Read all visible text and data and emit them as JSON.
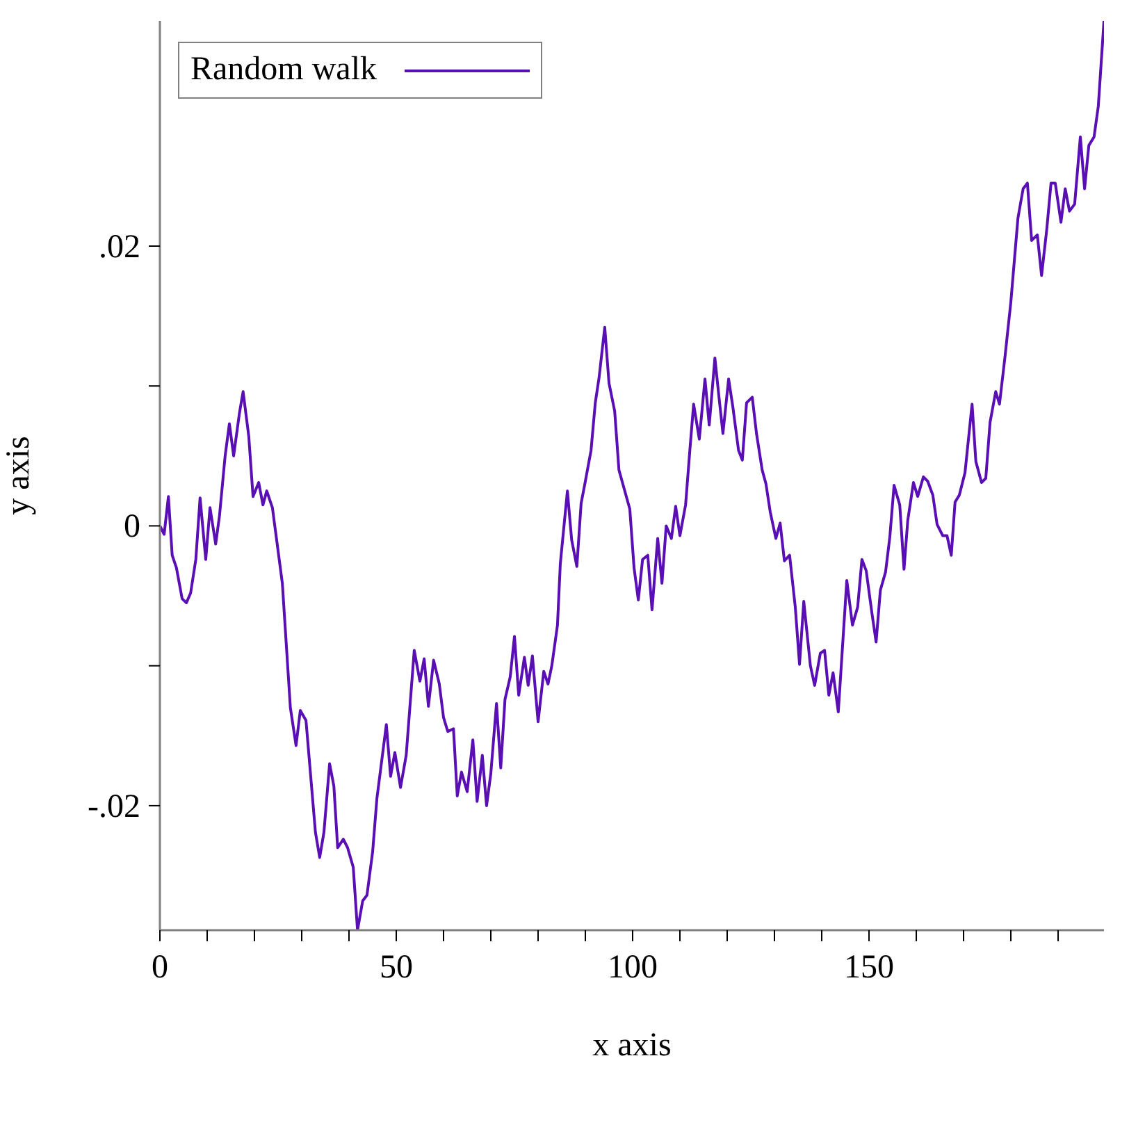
{
  "chart_data": {
    "type": "line",
    "xlabel": "x axis",
    "ylabel": "y axis",
    "xlim": [
      0,
      199.7
    ],
    "ylim": [
      -0.0289,
      0.0361
    ],
    "xticks": [
      0,
      {
        "value": 10,
        "label": null
      },
      {
        "value": 20,
        "label": null
      },
      {
        "value": 30,
        "label": null
      },
      {
        "value": 40,
        "label": null
      },
      50,
      {
        "value": 60,
        "label": null
      },
      {
        "value": 70,
        "label": null
      },
      {
        "value": 80,
        "label": null
      },
      {
        "value": 90,
        "label": null
      },
      100,
      {
        "value": 110,
        "label": null
      },
      {
        "value": 120,
        "label": null
      },
      {
        "value": 130,
        "label": null
      },
      {
        "value": 140,
        "label": null
      },
      150,
      {
        "value": 160,
        "label": null
      },
      {
        "value": 170,
        "label": null
      },
      {
        "value": 180,
        "label": null
      },
      {
        "value": 190,
        "label": null
      }
    ],
    "yticks": [
      {
        "value": -0.02,
        "label": "-.02"
      },
      {
        "value": -0.01,
        "label": null
      },
      0,
      {
        "value": 0.01,
        "label": null
      },
      {
        "value": 0.02,
        "label": ".02"
      }
    ],
    "legend": "top left",
    "marker": "none",
    "line_style": "solid",
    "series": [
      {
        "name": "Random walk",
        "color": "#5a0fb4",
        "x": [
          0,
          0.9,
          1.8,
          2.6,
          3.5,
          4.7,
          5.6,
          6.5,
          7.6,
          8.5,
          9.7,
          10.6,
          11.8,
          12.6,
          13.8,
          14.7,
          15.6,
          16.8,
          17.6,
          18.8,
          19.7,
          20.9,
          21.8,
          22.6,
          23.8,
          25.9,
          27.6,
          28.8,
          29.7,
          30.9,
          32.9,
          33.8,
          34.7,
          35.9,
          36.8,
          37.6,
          38.8,
          39.7,
          40.9,
          41.8,
          42.9,
          43.8,
          45.0,
          45.9,
          47.9,
          48.8,
          49.7,
          50.9,
          52.1,
          53.8,
          55.0,
          55.9,
          56.8,
          57.9,
          59.1,
          60.0,
          60.9,
          62.1,
          62.9,
          63.8,
          65.0,
          66.2,
          67.1,
          68.2,
          69.1,
          70.0,
          71.2,
          72.1,
          73.0,
          74.1,
          75.0,
          75.9,
          77.1,
          77.9,
          78.8,
          80.0,
          81.2,
          82.1,
          82.9,
          84.1,
          84.7,
          86.2,
          87.1,
          88.2,
          89.1,
          90.0,
          91.2,
          92.1,
          92.9,
          94.1,
          95.0,
          96.2,
          97.1,
          99.4,
          100.3,
          101.2,
          102.1,
          103.2,
          104.1,
          105.3,
          106.2,
          107.1,
          108.2,
          109.1,
          110.0,
          111.2,
          112.1,
          112.9,
          114.1,
          115.3,
          116.2,
          117.4,
          118.2,
          119.1,
          120.3,
          121.2,
          122.4,
          123.2,
          124.1,
          125.3,
          126.2,
          127.4,
          128.2,
          129.1,
          130.3,
          131.2,
          132.1,
          133.2,
          134.4,
          135.3,
          136.2,
          137.6,
          138.5,
          139.7,
          140.6,
          141.5,
          142.4,
          143.5,
          145.3,
          146.5,
          147.6,
          148.5,
          149.4,
          150.6,
          151.5,
          152.4,
          153.5,
          154.4,
          155.3,
          156.5,
          157.4,
          158.2,
          159.4,
          160.3,
          161.5,
          162.4,
          163.5,
          164.4,
          165.6,
          166.5,
          167.4,
          168.2,
          169.1,
          170.3,
          171.8,
          172.6,
          173.8,
          174.7,
          175.6,
          176.8,
          177.6,
          178.8,
          180.0,
          181.5,
          182.6,
          183.5,
          184.4,
          185.6,
          186.5,
          187.6,
          188.5,
          189.4,
          190.6,
          191.5,
          192.4,
          193.5,
          194.7,
          195.6,
          196.5,
          197.6,
          198.5,
          199.7
        ],
        "values": [
          0,
          -0.0006,
          0.0021,
          -0.0021,
          -0.003,
          -0.0052,
          -0.0055,
          -0.0048,
          -0.0024,
          0.002,
          -0.0024,
          0.0013,
          -0.0013,
          0.0007,
          0.005,
          0.0073,
          0.005,
          0.008,
          0.0096,
          0.0064,
          0.0021,
          0.0031,
          0.0015,
          0.0025,
          0.0013,
          -0.0041,
          -0.013,
          -0.0157,
          -0.0132,
          -0.0139,
          -0.0219,
          -0.0237,
          -0.0219,
          -0.017,
          -0.0186,
          -0.023,
          -0.0224,
          -0.023,
          -0.0244,
          -0.0289,
          -0.0268,
          -0.0264,
          -0.0233,
          -0.0195,
          -0.0142,
          -0.0179,
          -0.0162,
          -0.0187,
          -0.0164,
          -0.0089,
          -0.0111,
          -0.0095,
          -0.0129,
          -0.0096,
          -0.0113,
          -0.0137,
          -0.0147,
          -0.0145,
          -0.0193,
          -0.0176,
          -0.019,
          -0.0153,
          -0.0197,
          -0.0164,
          -0.02,
          -0.0177,
          -0.0127,
          -0.0173,
          -0.0124,
          -0.0108,
          -0.0079,
          -0.0121,
          -0.0094,
          -0.0114,
          -0.0093,
          -0.014,
          -0.0104,
          -0.0113,
          -0.01,
          -0.0071,
          -0.0027,
          0.0025,
          -0.001,
          -0.0029,
          0.0016,
          0.0032,
          0.0054,
          0.0088,
          0.0106,
          0.0142,
          0.0102,
          0.0082,
          0.004,
          0.0012,
          -0.003,
          -0.0053,
          -0.0024,
          -0.0021,
          -0.006,
          -0.0009,
          -0.0041,
          0,
          -0.0009,
          0.0014,
          -0.0007,
          0.0015,
          0.0054,
          0.0087,
          0.0062,
          0.0105,
          0.0072,
          0.012,
          0.0094,
          0.0066,
          0.0105,
          0.0085,
          0.0054,
          0.0047,
          0.0088,
          0.0092,
          0.0066,
          0.004,
          0.003,
          0.001,
          -0.0009,
          0.0002,
          -0.0025,
          -0.0021,
          -0.0058,
          -0.0099,
          -0.0054,
          -0.01,
          -0.0114,
          -0.0091,
          -0.0089,
          -0.0121,
          -0.0105,
          -0.0133,
          -0.0039,
          -0.0071,
          -0.0058,
          -0.0024,
          -0.0032,
          -0.0062,
          -0.0083,
          -0.0046,
          -0.0033,
          -0.0008,
          0.0029,
          0.0015,
          -0.0031,
          0.0004,
          0.0031,
          0.0021,
          0.0035,
          0.0032,
          0.0022,
          0.0001,
          -0.0007,
          -0.0007,
          -0.0021,
          0.0017,
          0.0022,
          0.0038,
          0.0087,
          0.0046,
          0.0031,
          0.0034,
          0.0074,
          0.0096,
          0.0087,
          0.0122,
          0.016,
          0.022,
          0.0241,
          0.0245,
          0.0204,
          0.0208,
          0.0179,
          0.0212,
          0.0245,
          0.0245,
          0.0217,
          0.0241,
          0.0225,
          0.023,
          0.0278,
          0.0241,
          0.0272,
          0.0278,
          0.03,
          0.0361
        ]
      }
    ]
  }
}
